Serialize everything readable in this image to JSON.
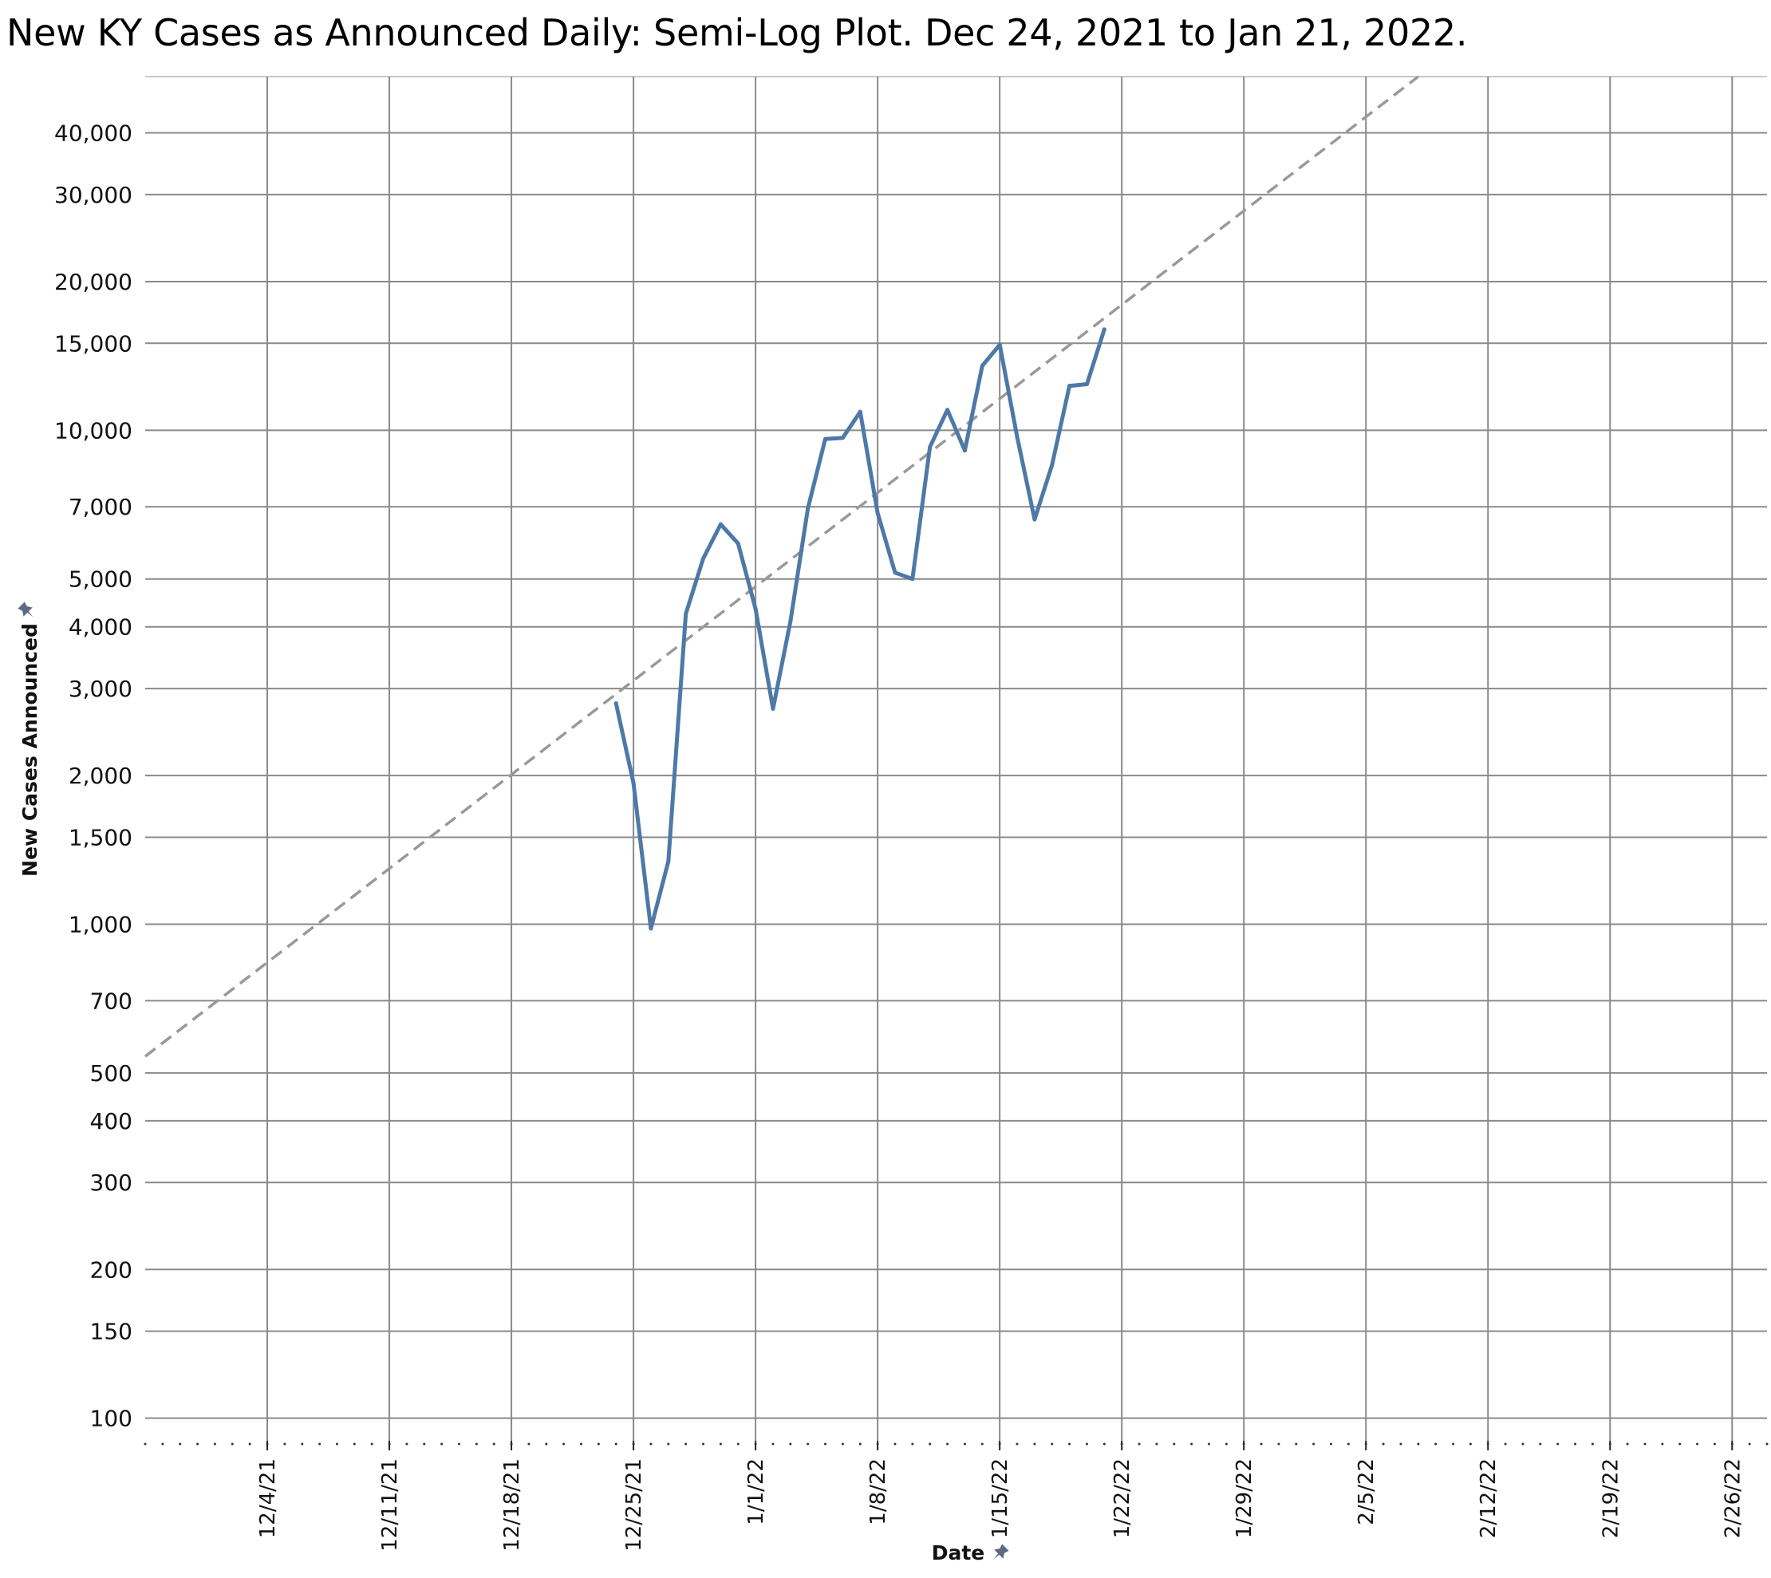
{
  "chart_data": {
    "type": "line",
    "title": "New KY Cases as Announced Daily: Semi-Log Plot.  Dec 24, 2021 to Jan 21, 2022.",
    "xlabel": "Date",
    "ylabel": "New Cases  Announced",
    "y_scale": "log",
    "ylim": [
      90,
      52000
    ],
    "xlim": [
      "2021-11-27",
      "2022-02-28"
    ],
    "grid": true,
    "x_ticks": [
      {
        "date": "2021-12-04",
        "label": "12/4/21"
      },
      {
        "date": "2021-12-11",
        "label": "12/11/21"
      },
      {
        "date": "2021-12-18",
        "label": "12/18/21"
      },
      {
        "date": "2021-12-25",
        "label": "12/25/21"
      },
      {
        "date": "2022-01-01",
        "label": "1/1/22"
      },
      {
        "date": "2022-01-08",
        "label": "1/8/22"
      },
      {
        "date": "2022-01-15",
        "label": "1/15/22"
      },
      {
        "date": "2022-01-22",
        "label": "1/22/22"
      },
      {
        "date": "2022-01-29",
        "label": "1/29/22"
      },
      {
        "date": "2022-02-05",
        "label": "2/5/22"
      },
      {
        "date": "2022-02-12",
        "label": "2/12/22"
      },
      {
        "date": "2022-02-19",
        "label": "2/19/22"
      },
      {
        "date": "2022-02-26",
        "label": "2/26/22"
      }
    ],
    "y_ticks": [
      {
        "value": 100,
        "label": "100"
      },
      {
        "value": 150,
        "label": "150"
      },
      {
        "value": 200,
        "label": "200"
      },
      {
        "value": 300,
        "label": "300"
      },
      {
        "value": 400,
        "label": "400"
      },
      {
        "value": 500,
        "label": "500"
      },
      {
        "value": 700,
        "label": "700"
      },
      {
        "value": 1000,
        "label": "1,000"
      },
      {
        "value": 1500,
        "label": "1,500"
      },
      {
        "value": 2000,
        "label": "2,000"
      },
      {
        "value": 3000,
        "label": "3,000"
      },
      {
        "value": 4000,
        "label": "4,000"
      },
      {
        "value": 5000,
        "label": "5,000"
      },
      {
        "value": 7000,
        "label": "7,000"
      },
      {
        "value": 10000,
        "label": "10,000"
      },
      {
        "value": 15000,
        "label": "15,000"
      },
      {
        "value": 20000,
        "label": "20,000"
      },
      {
        "value": 30000,
        "label": "30,000"
      },
      {
        "value": 40000,
        "label": "40,000"
      }
    ],
    "series": [
      {
        "color": "#4e79a7",
        "points": [
          {
            "x": "2021-12-24",
            "y": 2800
          },
          {
            "x": "2021-12-25",
            "y": 1930
          },
          {
            "x": "2021-12-26",
            "y": 980
          },
          {
            "x": "2021-12-27",
            "y": 1340
          },
          {
            "x": "2021-12-28",
            "y": 4250
          },
          {
            "x": "2021-12-29",
            "y": 5500
          },
          {
            "x": "2021-12-30",
            "y": 6450
          },
          {
            "x": "2021-12-31",
            "y": 5900
          },
          {
            "x": "2022-01-01",
            "y": 4350
          },
          {
            "x": "2022-01-02",
            "y": 2730
          },
          {
            "x": "2022-01-03",
            "y": 4100
          },
          {
            "x": "2022-01-04",
            "y": 6950
          },
          {
            "x": "2022-01-05",
            "y": 9600
          },
          {
            "x": "2022-01-06",
            "y": 9650
          },
          {
            "x": "2022-01-07",
            "y": 10900
          },
          {
            "x": "2022-01-08",
            "y": 6800
          },
          {
            "x": "2022-01-09",
            "y": 5150
          },
          {
            "x": "2022-01-10",
            "y": 5000
          },
          {
            "x": "2022-01-11",
            "y": 9250
          },
          {
            "x": "2022-01-12",
            "y": 11000
          },
          {
            "x": "2022-01-13",
            "y": 9100
          },
          {
            "x": "2022-01-14",
            "y": 13500
          },
          {
            "x": "2022-01-15",
            "y": 14900
          },
          {
            "x": "2022-01-16",
            "y": 9700
          },
          {
            "x": "2022-01-17",
            "y": 6600
          },
          {
            "x": "2022-01-18",
            "y": 8500
          },
          {
            "x": "2022-01-19",
            "y": 12300
          },
          {
            "x": "2022-01-20",
            "y": 12400
          },
          {
            "x": "2022-01-21",
            "y": 16000
          }
        ]
      }
    ],
    "trend_line": {
      "style": "dashed",
      "color": "#999999",
      "points": [
        {
          "x": "2021-11-27",
          "y": 540
        },
        {
          "x": "2022-02-08",
          "y": 52000
        }
      ]
    }
  }
}
